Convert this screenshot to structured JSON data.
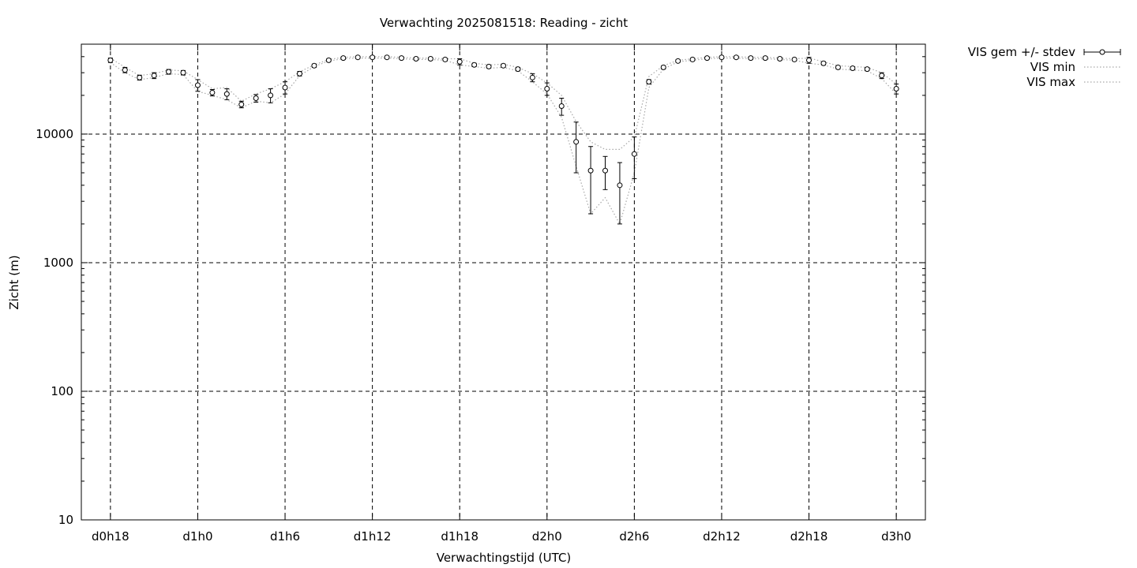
{
  "chart_data": {
    "type": "line",
    "title": "Verwachting 2025081518: Reading - zicht",
    "xlabel": "Verwachtingstijd (UTC)",
    "ylabel": "Zicht (m)",
    "yscale": "log",
    "ylim": [
      10,
      50000
    ],
    "xlim": [
      -2,
      56
    ],
    "grid": true,
    "legend_position": "outside-top-right",
    "x_ticks": [
      {
        "x": 0,
        "label": "d0h18"
      },
      {
        "x": 6,
        "label": "d1h0"
      },
      {
        "x": 12,
        "label": "d1h6"
      },
      {
        "x": 18,
        "label": "d1h12"
      },
      {
        "x": 24,
        "label": "d1h18"
      },
      {
        "x": 30,
        "label": "d2h0"
      },
      {
        "x": 36,
        "label": "d2h6"
      },
      {
        "x": 42,
        "label": "d2h12"
      },
      {
        "x": 48,
        "label": "d2h18"
      },
      {
        "x": 54,
        "label": "d3h0"
      }
    ],
    "y_ticks": [
      {
        "y": 10,
        "label": "10"
      },
      {
        "y": 100,
        "label": "100"
      },
      {
        "y": 1000,
        "label": "1000"
      },
      {
        "y": 10000,
        "label": "10000"
      }
    ],
    "x": [
      0,
      1,
      2,
      3,
      4,
      5,
      6,
      7,
      8,
      9,
      10,
      11,
      12,
      13,
      14,
      15,
      16,
      17,
      18,
      19,
      20,
      21,
      22,
      23,
      24,
      25,
      26,
      27,
      28,
      29,
      30,
      31,
      32,
      33,
      34,
      35,
      36,
      37,
      38,
      39,
      40,
      41,
      42,
      43,
      44,
      45,
      46,
      47,
      48,
      49,
      50,
      51,
      52,
      53,
      54
    ],
    "series": [
      {
        "name": "VIS gem +/- stdev",
        "style": "points-errorbars",
        "values": [
          37500,
          31500,
          27500,
          28500,
          30500,
          30000,
          24000,
          21000,
          20500,
          17000,
          19000,
          20000,
          23000,
          29500,
          34000,
          37500,
          39000,
          39500,
          39500,
          39500,
          39000,
          38500,
          38500,
          38000,
          36500,
          34500,
          33500,
          34000,
          32000,
          27500,
          22500,
          16500,
          8700,
          5200,
          5200,
          4000,
          7000,
          25500,
          33000,
          37000,
          38000,
          39000,
          39500,
          39500,
          39000,
          39000,
          38500,
          38000,
          37500,
          35500,
          33000,
          32500,
          32000,
          28500,
          22500
        ],
        "errors": [
          1500,
          1500,
          1200,
          1500,
          1300,
          1200,
          2500,
          1200,
          2000,
          1000,
          1300,
          2500,
          2500,
          1200,
          1000,
          1000,
          900,
          900,
          900,
          900,
          900,
          900,
          900,
          900,
          2000,
          1000,
          900,
          1000,
          1000,
          2000,
          2500,
          2500,
          3700,
          2800,
          1500,
          2000,
          2500,
          1000,
          1000,
          900,
          900,
          900,
          900,
          900,
          900,
          900,
          900,
          900,
          2000,
          1000,
          900,
          900,
          900,
          1500,
          2000
        ]
      },
      {
        "name": "VIS min",
        "style": "dotted",
        "values": [
          36000,
          30000,
          26500,
          27500,
          29500,
          29000,
          21500,
          20000,
          18500,
          16000,
          18000,
          17500,
          20500,
          28500,
          33500,
          37000,
          38500,
          39000,
          39000,
          39000,
          38500,
          38000,
          38000,
          37500,
          34500,
          33500,
          32500,
          33000,
          31000,
          25500,
          20500,
          13500,
          5600,
          2400,
          3200,
          2000,
          5000,
          23000,
          32000,
          36500,
          37500,
          38500,
          39000,
          39000,
          38500,
          38500,
          38000,
          37500,
          35500,
          34500,
          32000,
          31500,
          31000,
          27000,
          20500
        ]
      },
      {
        "name": "VIS max",
        "style": "dotted",
        "values": [
          39000,
          33000,
          28500,
          29500,
          31500,
          31000,
          26500,
          22500,
          23000,
          18000,
          20500,
          22500,
          25500,
          30500,
          34500,
          38000,
          39500,
          40000,
          40000,
          40000,
          39500,
          39000,
          39000,
          38500,
          38500,
          35500,
          34500,
          35000,
          33000,
          29500,
          25000,
          20000,
          12500,
          8700,
          7600,
          7600,
          9500,
          28000,
          34000,
          37500,
          38500,
          39500,
          40000,
          40000,
          39500,
          39500,
          39000,
          38500,
          39000,
          36500,
          34000,
          33500,
          33000,
          30000,
          24500
        ]
      }
    ]
  }
}
